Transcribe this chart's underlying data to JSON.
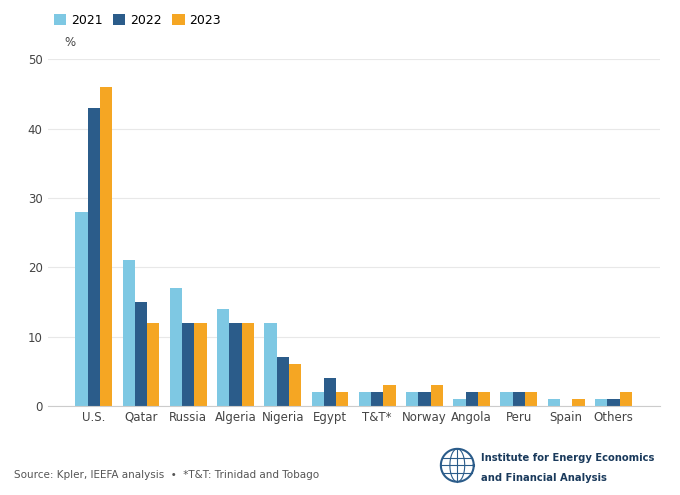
{
  "categories": [
    "U.S.",
    "Qatar",
    "Russia",
    "Algeria",
    "Nigeria",
    "Egypt",
    "T&T*",
    "Norway",
    "Angola",
    "Peru",
    "Spain",
    "Others"
  ],
  "values_2021": [
    28,
    21,
    17,
    14,
    12,
    2,
    2,
    2,
    1,
    2,
    1,
    1
  ],
  "values_2022": [
    43,
    15,
    12,
    12,
    7,
    4,
    2,
    2,
    2,
    2,
    0,
    1
  ],
  "values_2023": [
    46,
    12,
    12,
    12,
    6,
    2,
    3,
    3,
    2,
    2,
    1,
    2
  ],
  "color_2021": "#7EC8E3",
  "color_2022": "#2B5C8A",
  "color_2023": "#F5A623",
  "ylabel": "%",
  "ylim": [
    0,
    50
  ],
  "yticks": [
    0,
    10,
    20,
    30,
    40,
    50
  ],
  "source_text": "Source: Kpler, IEEFA analysis  •  *T&T: Trinidad and Tobago",
  "legend_labels": [
    "2021",
    "2022",
    "2023"
  ],
  "background_color": "#ffffff",
  "tick_fontsize": 8.5,
  "legend_fontsize": 9
}
